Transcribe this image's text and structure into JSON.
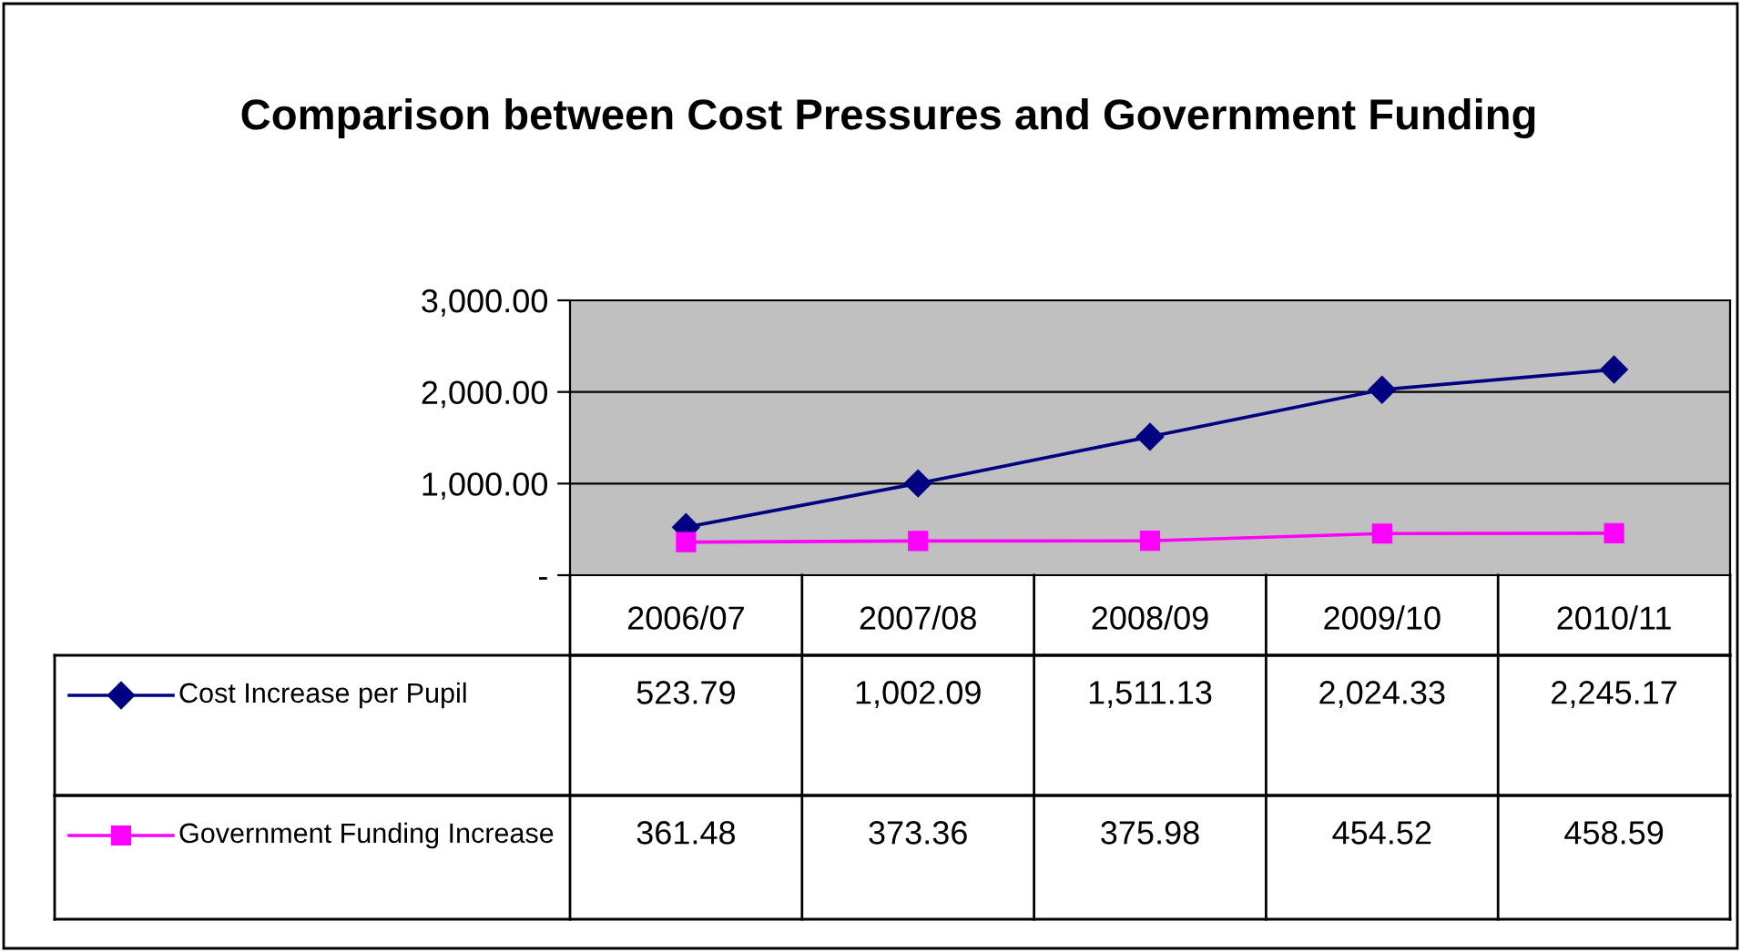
{
  "chart_data": {
    "type": "line",
    "title": "Comparison between Cost Pressures and Government Funding",
    "categories": [
      "2006/07",
      "2007/08",
      "2008/09",
      "2009/10",
      "2010/11"
    ],
    "series": [
      {
        "name": "Cost Increase per Pupil",
        "color": "#000080",
        "marker": "diamond",
        "values": [
          523.79,
          1002.09,
          1511.13,
          2024.33,
          2245.17
        ],
        "value_labels": [
          "523.79",
          "1,002.09",
          "1,511.13",
          "2,024.33",
          "2,245.17"
        ]
      },
      {
        "name": "Government Funding Increase",
        "color": "#ff00ff",
        "marker": "square",
        "values": [
          361.48,
          373.36,
          375.98,
          454.52,
          458.59
        ],
        "value_labels": [
          "361.48",
          "373.36",
          "375.98",
          "454.52",
          "458.59"
        ]
      }
    ],
    "ylim": [
      0,
      3000
    ],
    "yticks": [
      {
        "value": 0,
        "label": "-"
      },
      {
        "value": 1000,
        "label": "1,000.00"
      },
      {
        "value": 2000,
        "label": "2,000.00"
      },
      {
        "value": 3000,
        "label": "3,000.00"
      }
    ],
    "grid": "y",
    "legend": "bottom",
    "line_style": "solid"
  }
}
